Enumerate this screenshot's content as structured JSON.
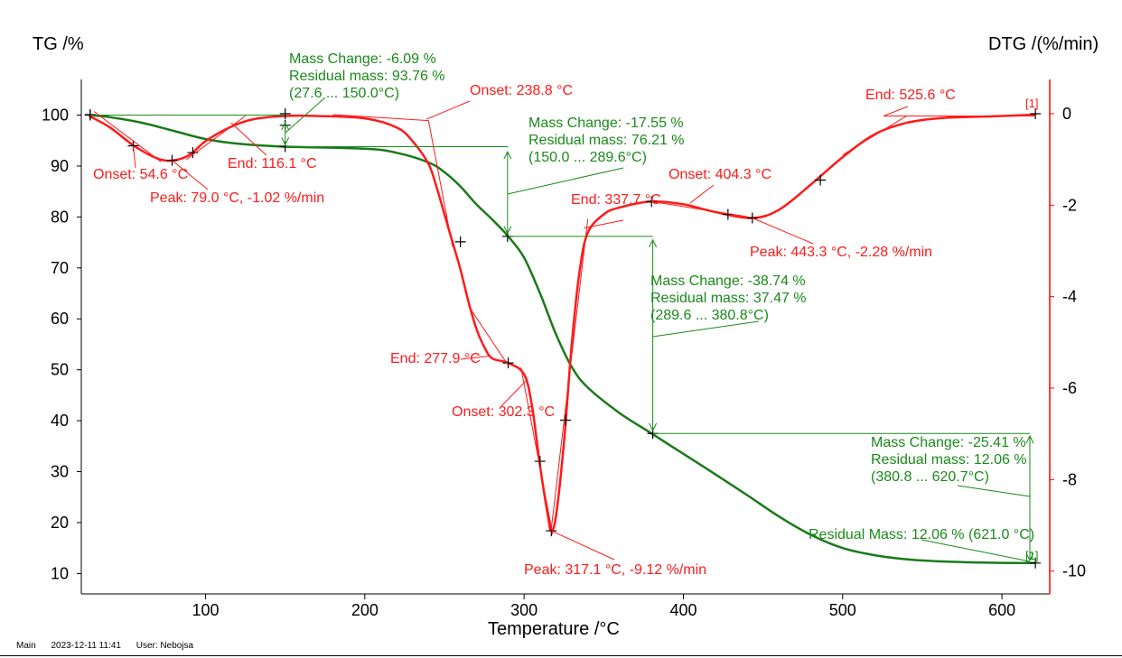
{
  "footer": {
    "main": "Main",
    "datetime": "2023-12-11 11:41",
    "user": "User: Nebojsa"
  },
  "chart_data": {
    "type": "line",
    "xlabel": "Temperature /°C",
    "ylabel_left": "TG /%",
    "ylabel_right": "DTG /(%/min)",
    "xlim": [
      22,
      630
    ],
    "ylim_left": [
      6,
      107
    ],
    "ylim_right": [
      -10.5,
      0.75
    ],
    "x_ticks": [
      100,
      200,
      300,
      400,
      500,
      600
    ],
    "y_left_ticks": [
      10,
      20,
      30,
      40,
      50,
      60,
      70,
      80,
      90,
      100
    ],
    "y_right_ticks": [
      0,
      -2,
      -4,
      -6,
      -8,
      -10
    ],
    "colors": {
      "tg": "#1a7a1a",
      "dtg": "#ff1a1a",
      "axis_left": "#000000",
      "axis_right": "#ff0000",
      "ann_tg": "#1a8a1a",
      "ann_dtg": "#ff1a1a"
    },
    "series": [
      {
        "axis": "left",
        "color": "#1a7a1a",
        "x": [
          27,
          40,
          60,
          80,
          100,
          120,
          150,
          200,
          220,
          240,
          250,
          260,
          270,
          280,
          290,
          300,
          310,
          320,
          330,
          340,
          360,
          380,
          400,
          420,
          440,
          460,
          480,
          500,
          520,
          540,
          560,
          580,
          600,
          621
        ],
        "y": [
          100,
          99.6,
          98.5,
          96.9,
          95.3,
          94.4,
          93.8,
          93.4,
          92.6,
          90.7,
          88.8,
          86.0,
          82.5,
          79.5,
          76.2,
          72.0,
          65.0,
          57.0,
          50.5,
          46.5,
          41.5,
          37.5,
          33.5,
          29.5,
          25.4,
          21.2,
          17.6,
          15.0,
          13.6,
          12.8,
          12.4,
          12.2,
          12.1,
          12.06
        ]
      },
      {
        "axis": "right",
        "color": "#ff1a1a",
        "x": [
          27,
          40,
          55,
          70,
          80,
          90,
          100,
          115,
          130,
          150,
          170,
          200,
          220,
          230,
          240,
          245,
          250,
          255,
          260,
          265,
          270,
          275,
          280,
          290,
          300,
          305,
          310,
          315,
          317,
          320,
          325,
          330,
          335,
          340,
          350,
          360,
          380,
          400,
          420,
          443,
          460,
          480,
          500,
          520,
          540,
          560,
          580,
          600,
          621
        ],
        "y": [
          -0.05,
          -0.3,
          -0.7,
          -0.98,
          -1.02,
          -0.9,
          -0.6,
          -0.3,
          -0.12,
          -0.05,
          -0.05,
          -0.1,
          -0.3,
          -0.6,
          -1.1,
          -1.6,
          -2.2,
          -2.8,
          -3.4,
          -4.1,
          -4.7,
          -5.1,
          -5.35,
          -5.45,
          -5.7,
          -6.4,
          -7.7,
          -8.8,
          -9.12,
          -8.8,
          -7.2,
          -5.0,
          -3.4,
          -2.6,
          -2.2,
          -2.05,
          -1.92,
          -1.98,
          -2.15,
          -2.28,
          -2.1,
          -1.55,
          -0.95,
          -0.45,
          -0.2,
          -0.1,
          -0.07,
          -0.05,
          -0.02
        ]
      }
    ],
    "markers": {
      "tg": [
        [
          27.6,
          100
        ],
        [
          150,
          93.8
        ],
        [
          150,
          98
        ],
        [
          289.6,
          76.2
        ],
        [
          380.8,
          37.5
        ],
        [
          621,
          12.06
        ]
      ],
      "dtg": [
        [
          27.6,
          -0.02
        ],
        [
          54.6,
          -0.7
        ],
        [
          79,
          -1.02
        ],
        [
          92,
          -0.85
        ],
        [
          150,
          0.0
        ],
        [
          260,
          -2.8
        ],
        [
          290,
          -5.45
        ],
        [
          310,
          -7.6
        ],
        [
          317.1,
          -9.12
        ],
        [
          326,
          -6.7
        ],
        [
          380,
          -1.92
        ],
        [
          428,
          -2.2
        ],
        [
          443.3,
          -2.28
        ],
        [
          486,
          -1.45
        ],
        [
          621,
          0.0
        ]
      ]
    },
    "annotations_tg": [
      {
        "lines": [
          "Mass Change:    -6.09 %",
          "Residual mass:  93.76 %",
          "(27.6 ... 150.0°C)"
        ]
      },
      {
        "lines": [
          "Mass Change:   -17.55 %",
          "Residual mass:   76.21 %",
          "(150.0 ... 289.6°C)"
        ]
      },
      {
        "lines": [
          "Mass Change:   -38.74 %",
          "Residual mass:   37.47 %",
          "(289.6 ... 380.8°C)"
        ]
      },
      {
        "lines": [
          "Mass Change:    -25.41 %",
          "Residual mass:    12.06 %",
          "(380.8 ... 620.7°C)"
        ]
      },
      {
        "lines": [
          "Residual Mass: 12.06 % (621.0 °C)"
        ]
      }
    ],
    "annotations_dtg": [
      {
        "text": "Onset: 54.6 °C"
      },
      {
        "text": "Peak: 79.0 °C, -1.02 %/min"
      },
      {
        "text": "End: 116.1 °C"
      },
      {
        "text": "Onset: 238.8 °C"
      },
      {
        "text": "End: 277.9 °C"
      },
      {
        "text": "Onset: 302.3 °C"
      },
      {
        "text": "Peak: 317.1 °C, -9.12 %/min"
      },
      {
        "text": "End: 337.7 °C"
      },
      {
        "text": "Onset: 404.3 °C"
      },
      {
        "text": "Peak: 443.3 °C, -2.28 %/min"
      },
      {
        "text": "End: 525.6 °C"
      }
    ],
    "curve_tags": [
      "[1]",
      "[1]"
    ]
  }
}
